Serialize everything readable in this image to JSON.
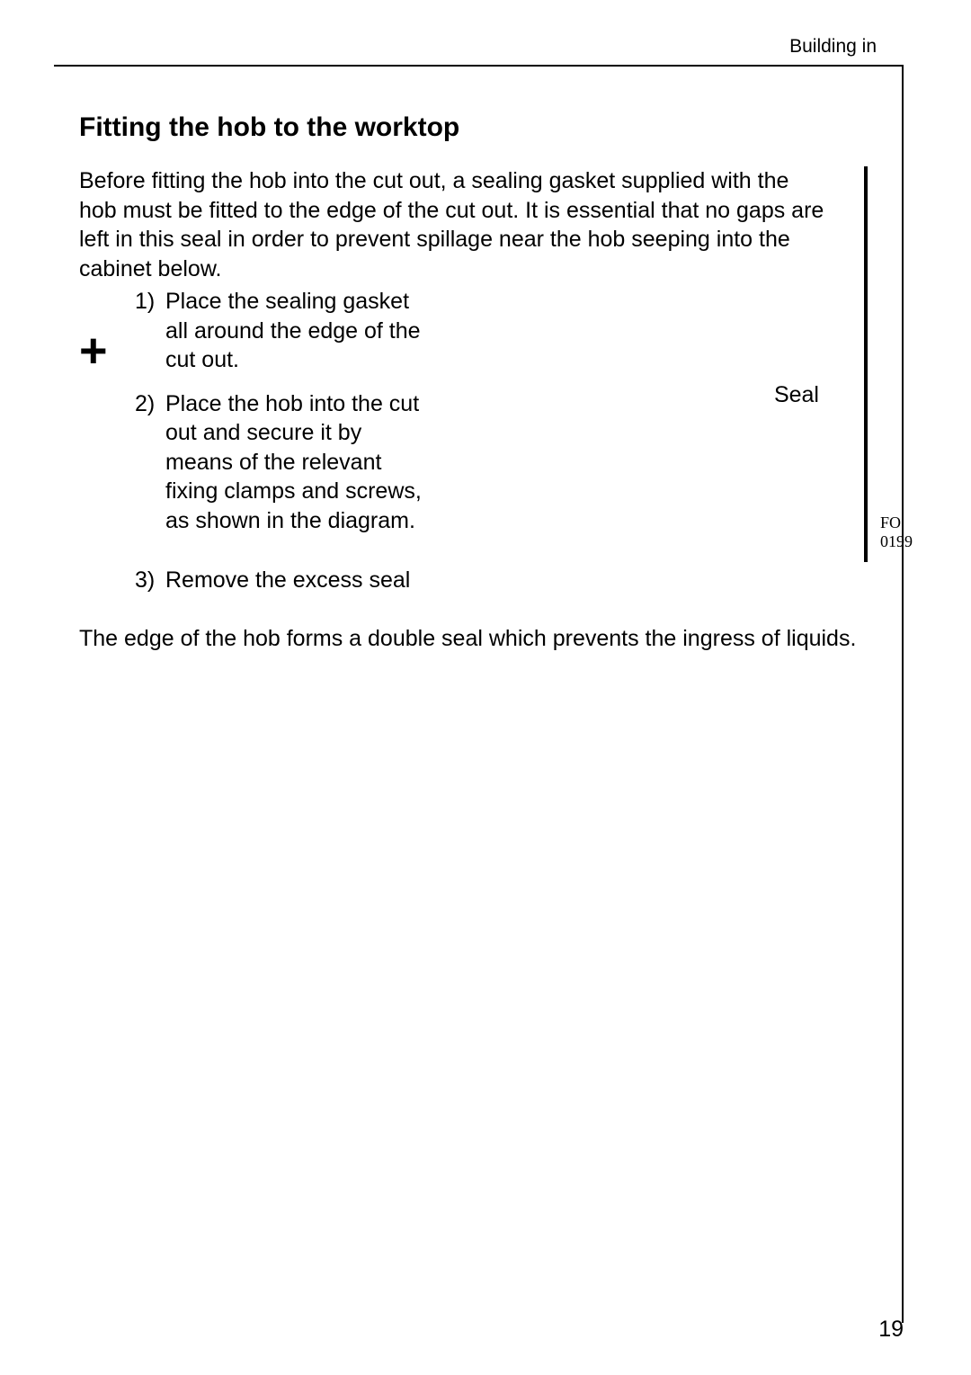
{
  "header": {
    "label": "Building in"
  },
  "title": "Fitting the hob to the worktop",
  "intro": "Before fitting the hob into the cut out, a sealing gasket supplied with the hob must be fitted to the edge of the cut out. It is essential that no gaps are left in this seal in order to prevent spillage near the hob seeping into the cabinet below.",
  "steps": [
    {
      "num": "1)",
      "text": "Place the sealing gasket all around the edge of the cut out."
    },
    {
      "num": "2)",
      "text": "Place the hob into the cut out and secure it by means of the relevant fixing clamps and screws, as shown in the diagram."
    },
    {
      "num": "3)",
      "text": "Remove the excess seal"
    }
  ],
  "closing": "The edge of the hob forms a double seal which prevents the ingress of liquids.",
  "figure": {
    "seal_label": "Seal",
    "ref": "FO 0199"
  },
  "page_number": "19",
  "icon_glyph": "+"
}
